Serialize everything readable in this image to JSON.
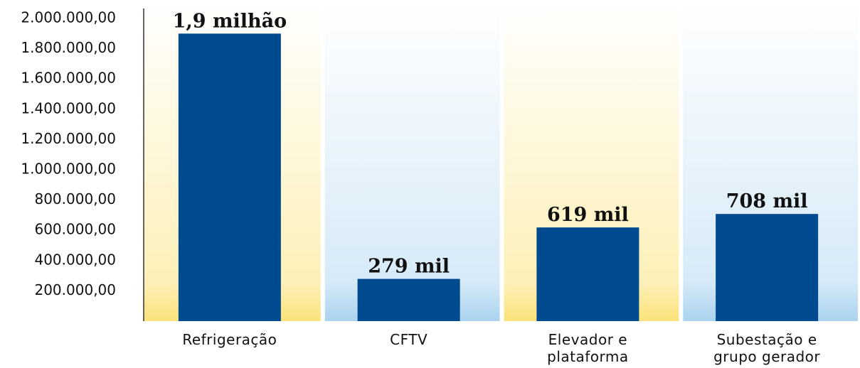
{
  "chart_data": {
    "type": "bar",
    "categories": [
      "Refrigeração",
      "CFTV",
      "Elevador e plataforma",
      "Subestação e grupo gerador"
    ],
    "values": [
      1900000,
      279000,
      619000,
      708000
    ],
    "value_labels": [
      "1,9 milhão",
      "279 mil",
      "619 mil",
      "708 mil"
    ],
    "color": "#004a8f",
    "ylim": [
      0,
      2000000
    ],
    "yticks": [
      {
        "value": 200000,
        "label": "200.000,00"
      },
      {
        "value": 400000,
        "label": "400.000,00"
      },
      {
        "value": 600000,
        "label": "600.000,00"
      },
      {
        "value": 800000,
        "label": "800.000,00"
      },
      {
        "value": 1000000,
        "label": "1.000.000,00"
      },
      {
        "value": 1200000,
        "label": "1.200.000,00"
      },
      {
        "value": 1400000,
        "label": "1.400.000,00"
      },
      {
        "value": 1600000,
        "label": "1.600.000,00"
      },
      {
        "value": 1800000,
        "label": "1.800.000,00"
      },
      {
        "value": 2000000,
        "label": "2.000.000,00"
      }
    ],
    "grid": false
  }
}
